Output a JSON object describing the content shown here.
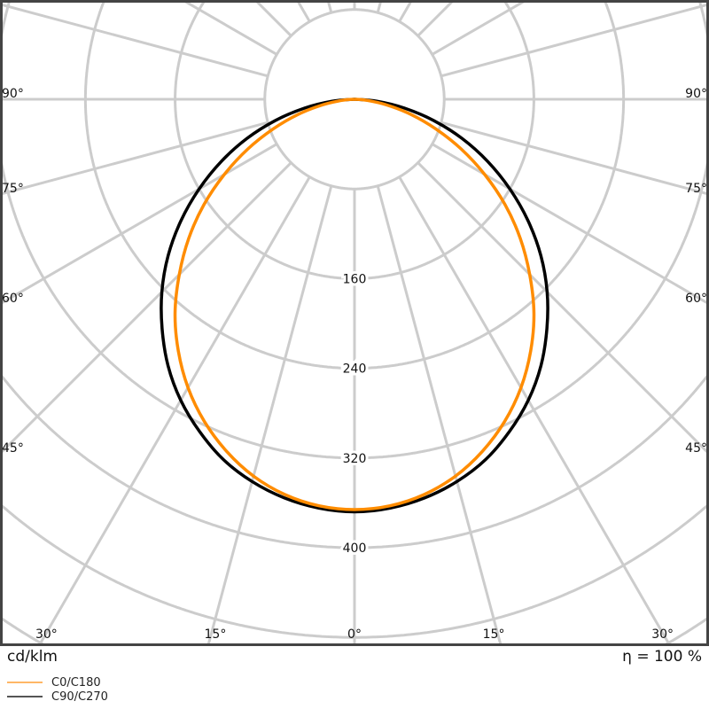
{
  "chart_data": {
    "type": "polar",
    "unit_label": "cd/klm",
    "efficiency_label": "η = 100 %",
    "angles_deg": [
      0,
      5,
      10,
      15,
      20,
      25,
      30,
      35,
      40,
      45,
      50,
      55,
      60,
      65,
      70,
      75,
      80,
      85,
      90
    ],
    "series": [
      {
        "name": "C0/C180",
        "color": "#ff8c00",
        "values": [
          366,
          364,
          358,
          348,
          334,
          317,
          297,
          274,
          249,
          221,
          193,
          164,
          134,
          105,
          77,
          52,
          29,
          11,
          0
        ]
      },
      {
        "name": "C90/C270",
        "color": "#000000",
        "values": [
          368,
          366,
          361,
          353,
          342,
          327,
          310,
          290,
          267,
          243,
          217,
          189,
          160,
          131,
          102,
          73,
          45,
          20,
          0
        ]
      }
    ],
    "radial_ticks": [
      160,
      240,
      320,
      400
    ],
    "radial_step": 80,
    "angle_ticks": [
      {
        "angle": 90,
        "label": "90°"
      },
      {
        "angle": 75,
        "label": "75°"
      },
      {
        "angle": 60,
        "label": "60°"
      },
      {
        "angle": 45,
        "label": "45°"
      },
      {
        "angle": 30,
        "label": "30°"
      },
      {
        "angle": 15,
        "label": "15°"
      },
      {
        "angle": 0,
        "label": "0°"
      }
    ],
    "grid": true,
    "legend_position": "bottom-left",
    "grid_color": "#cccccc"
  }
}
